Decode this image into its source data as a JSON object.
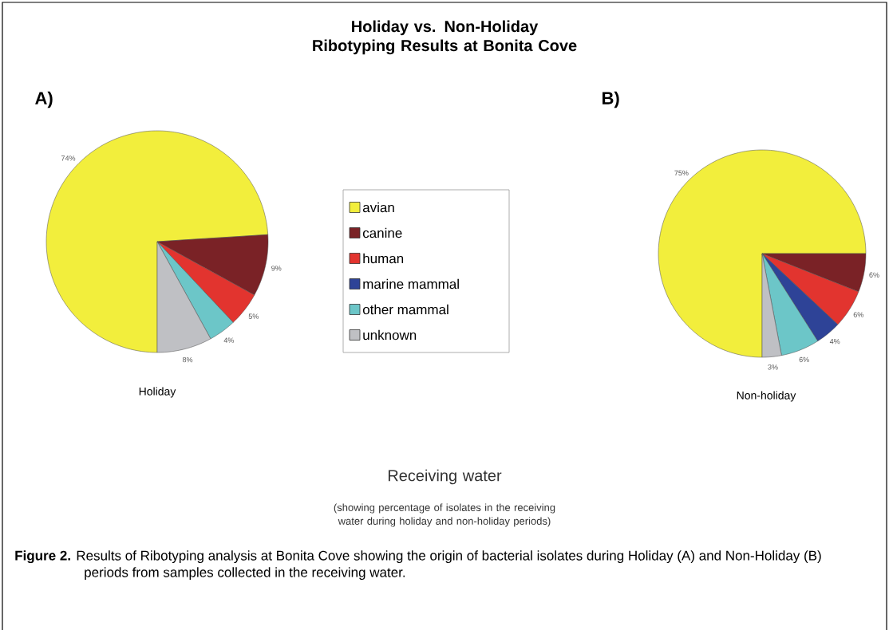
{
  "chart_data": [
    {
      "type": "pie",
      "title": "Holiday vs. Non-Holiday Ribotyping Results at Bonita Cove",
      "subtitle": "A)",
      "xlabel": "Holiday",
      "categories": [
        null,
        null,
        null,
        null,
        null
      ],
      "values": [
        74,
        9,
        5,
        4,
        8
      ],
      "colors": [
        "#f2ee3c",
        "#7a2226",
        "#e2342f",
        "#6cc6c8",
        "#bfc0c4"
      ],
      "value_labels": [
        "74%",
        "9%",
        "5%",
        "4%",
        "8%"
      ]
    },
    {
      "type": "pie",
      "subtitle": "B)",
      "xlabel": "Non-holiday",
      "legend": "left",
      "categories": [
        "avian",
        "canine",
        "human",
        "marine mammal",
        "other mammal",
        "unknown"
      ],
      "values": [
        75,
        6,
        6,
        4,
        6,
        3
      ],
      "colors": [
        "#f2ee3c",
        "#7a2226",
        "#e2342f",
        "#2e4397",
        "#6cc6c8",
        "#bfc0c4"
      ],
      "value_labels": [
        "75%",
        "6%",
        "6%",
        "4%",
        "6%",
        "3%"
      ],
      "annotations": [
        "Receiving water",
        "(showing percentage of isolates in the receiving water during holiday and non-holiday periods)",
        "**Figure 2.** Results of Ribotyping analysis at Bonita Cove showing the origin of bacterial isolates during Holiday (A) and Non-Holiday (B) periods from samples collected in the receiving water."
      ]
    }
  ]
}
